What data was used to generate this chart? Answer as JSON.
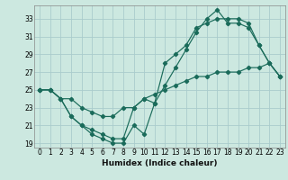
{
  "xlabel": "Humidex (Indice chaleur)",
  "bg_color": "#cce8e0",
  "grid_color": "#aacccc",
  "line_color": "#1a6b5a",
  "xlim": [
    -0.5,
    23.5
  ],
  "ylim": [
    18.5,
    34.5
  ],
  "xticks": [
    0,
    1,
    2,
    3,
    4,
    5,
    6,
    7,
    8,
    9,
    10,
    11,
    12,
    13,
    14,
    15,
    16,
    17,
    18,
    19,
    20,
    21,
    22,
    23
  ],
  "yticks": [
    19,
    21,
    23,
    25,
    27,
    29,
    31,
    33
  ],
  "line1_x": [
    0,
    1,
    2,
    3,
    4,
    5,
    6,
    7,
    8,
    9,
    10,
    11,
    12,
    13,
    14,
    15,
    16,
    17,
    18,
    19,
    20,
    21,
    22,
    23
  ],
  "line1_y": [
    25,
    25,
    24,
    22,
    21,
    20,
    19.5,
    19,
    19,
    21,
    20,
    23.5,
    25.5,
    27.5,
    29.5,
    31.5,
    33,
    34,
    32.5,
    32.5,
    32,
    30,
    28,
    26.5
  ],
  "line2_x": [
    0,
    1,
    2,
    3,
    4,
    5,
    6,
    7,
    8,
    9,
    10,
    11,
    12,
    13,
    14,
    15,
    16,
    17,
    18,
    19,
    20,
    21,
    22,
    23
  ],
  "line2_y": [
    25,
    25,
    24,
    22,
    21,
    20.5,
    20,
    19.5,
    19.5,
    23,
    24,
    23.5,
    28,
    29,
    30,
    32,
    32.5,
    33,
    33,
    33,
    32.5,
    30,
    28,
    26.5
  ],
  "line3_x": [
    0,
    1,
    2,
    3,
    4,
    5,
    6,
    7,
    8,
    9,
    10,
    11,
    12,
    13,
    14,
    15,
    16,
    17,
    18,
    19,
    20,
    21,
    22,
    23
  ],
  "line3_y": [
    25,
    25,
    24,
    24,
    23,
    22.5,
    22,
    22,
    23,
    23,
    24,
    24.5,
    25,
    25.5,
    26,
    26.5,
    26.5,
    27,
    27,
    27,
    27.5,
    27.5,
    28,
    26.5
  ]
}
